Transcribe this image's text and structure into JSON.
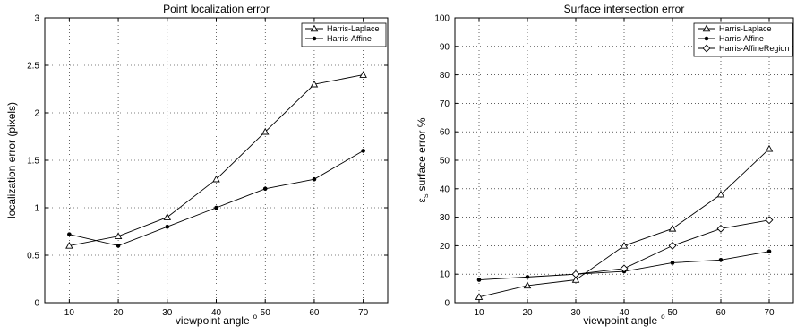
{
  "chart_data": [
    {
      "type": "line",
      "title": "Point localization error",
      "xlabel": "viewpoint angle",
      "xlabel_sup": "o",
      "ylabel": "localization error (pixels)",
      "x": [
        10,
        20,
        30,
        40,
        50,
        60,
        70
      ],
      "xlim": [
        5,
        75
      ],
      "ylim": [
        0,
        3
      ],
      "xticks": [
        "10",
        "20",
        "30",
        "40",
        "50",
        "60",
        "70"
      ],
      "yticks": [
        "0",
        "0.5",
        "1",
        "1.5",
        "2",
        "2.5",
        "3"
      ],
      "grid": true,
      "legend_position": "top-right",
      "series": [
        {
          "name": "Harris-Laplace",
          "marker": "triangle",
          "values": [
            0.6,
            0.7,
            0.9,
            1.3,
            1.8,
            2.3,
            2.4
          ]
        },
        {
          "name": "Harris-Affine",
          "marker": "dot",
          "values": [
            0.72,
            0.6,
            0.8,
            1.0,
            1.2,
            1.3,
            1.6
          ]
        }
      ]
    },
    {
      "type": "line",
      "title": "Surface intersection error",
      "xlabel": "viewpoint angle",
      "xlabel_sup": "o",
      "ylabel_symbol": "ε",
      "ylabel_sub": "S",
      "ylabel": "surface error %",
      "x": [
        10,
        20,
        30,
        40,
        50,
        60,
        70
      ],
      "xlim": [
        5,
        75
      ],
      "ylim": [
        0,
        100
      ],
      "xticks": [
        "10",
        "20",
        "30",
        "40",
        "50",
        "60",
        "70"
      ],
      "yticks": [
        "0",
        "10",
        "20",
        "30",
        "40",
        "50",
        "60",
        "70",
        "80",
        "90",
        "100"
      ],
      "grid": true,
      "legend_position": "top-right",
      "series": [
        {
          "name": "Harris-Laplace",
          "marker": "triangle",
          "values": [
            2,
            6,
            8,
            20,
            26,
            38,
            54
          ]
        },
        {
          "name": "Harris-Affine",
          "marker": "dot",
          "values": [
            8,
            9,
            10,
            11,
            14,
            15,
            18
          ]
        },
        {
          "name": "Harris-AffineRegion",
          "marker": "diamond",
          "values": [
            null,
            null,
            10,
            12,
            20,
            26,
            29
          ]
        }
      ]
    }
  ]
}
